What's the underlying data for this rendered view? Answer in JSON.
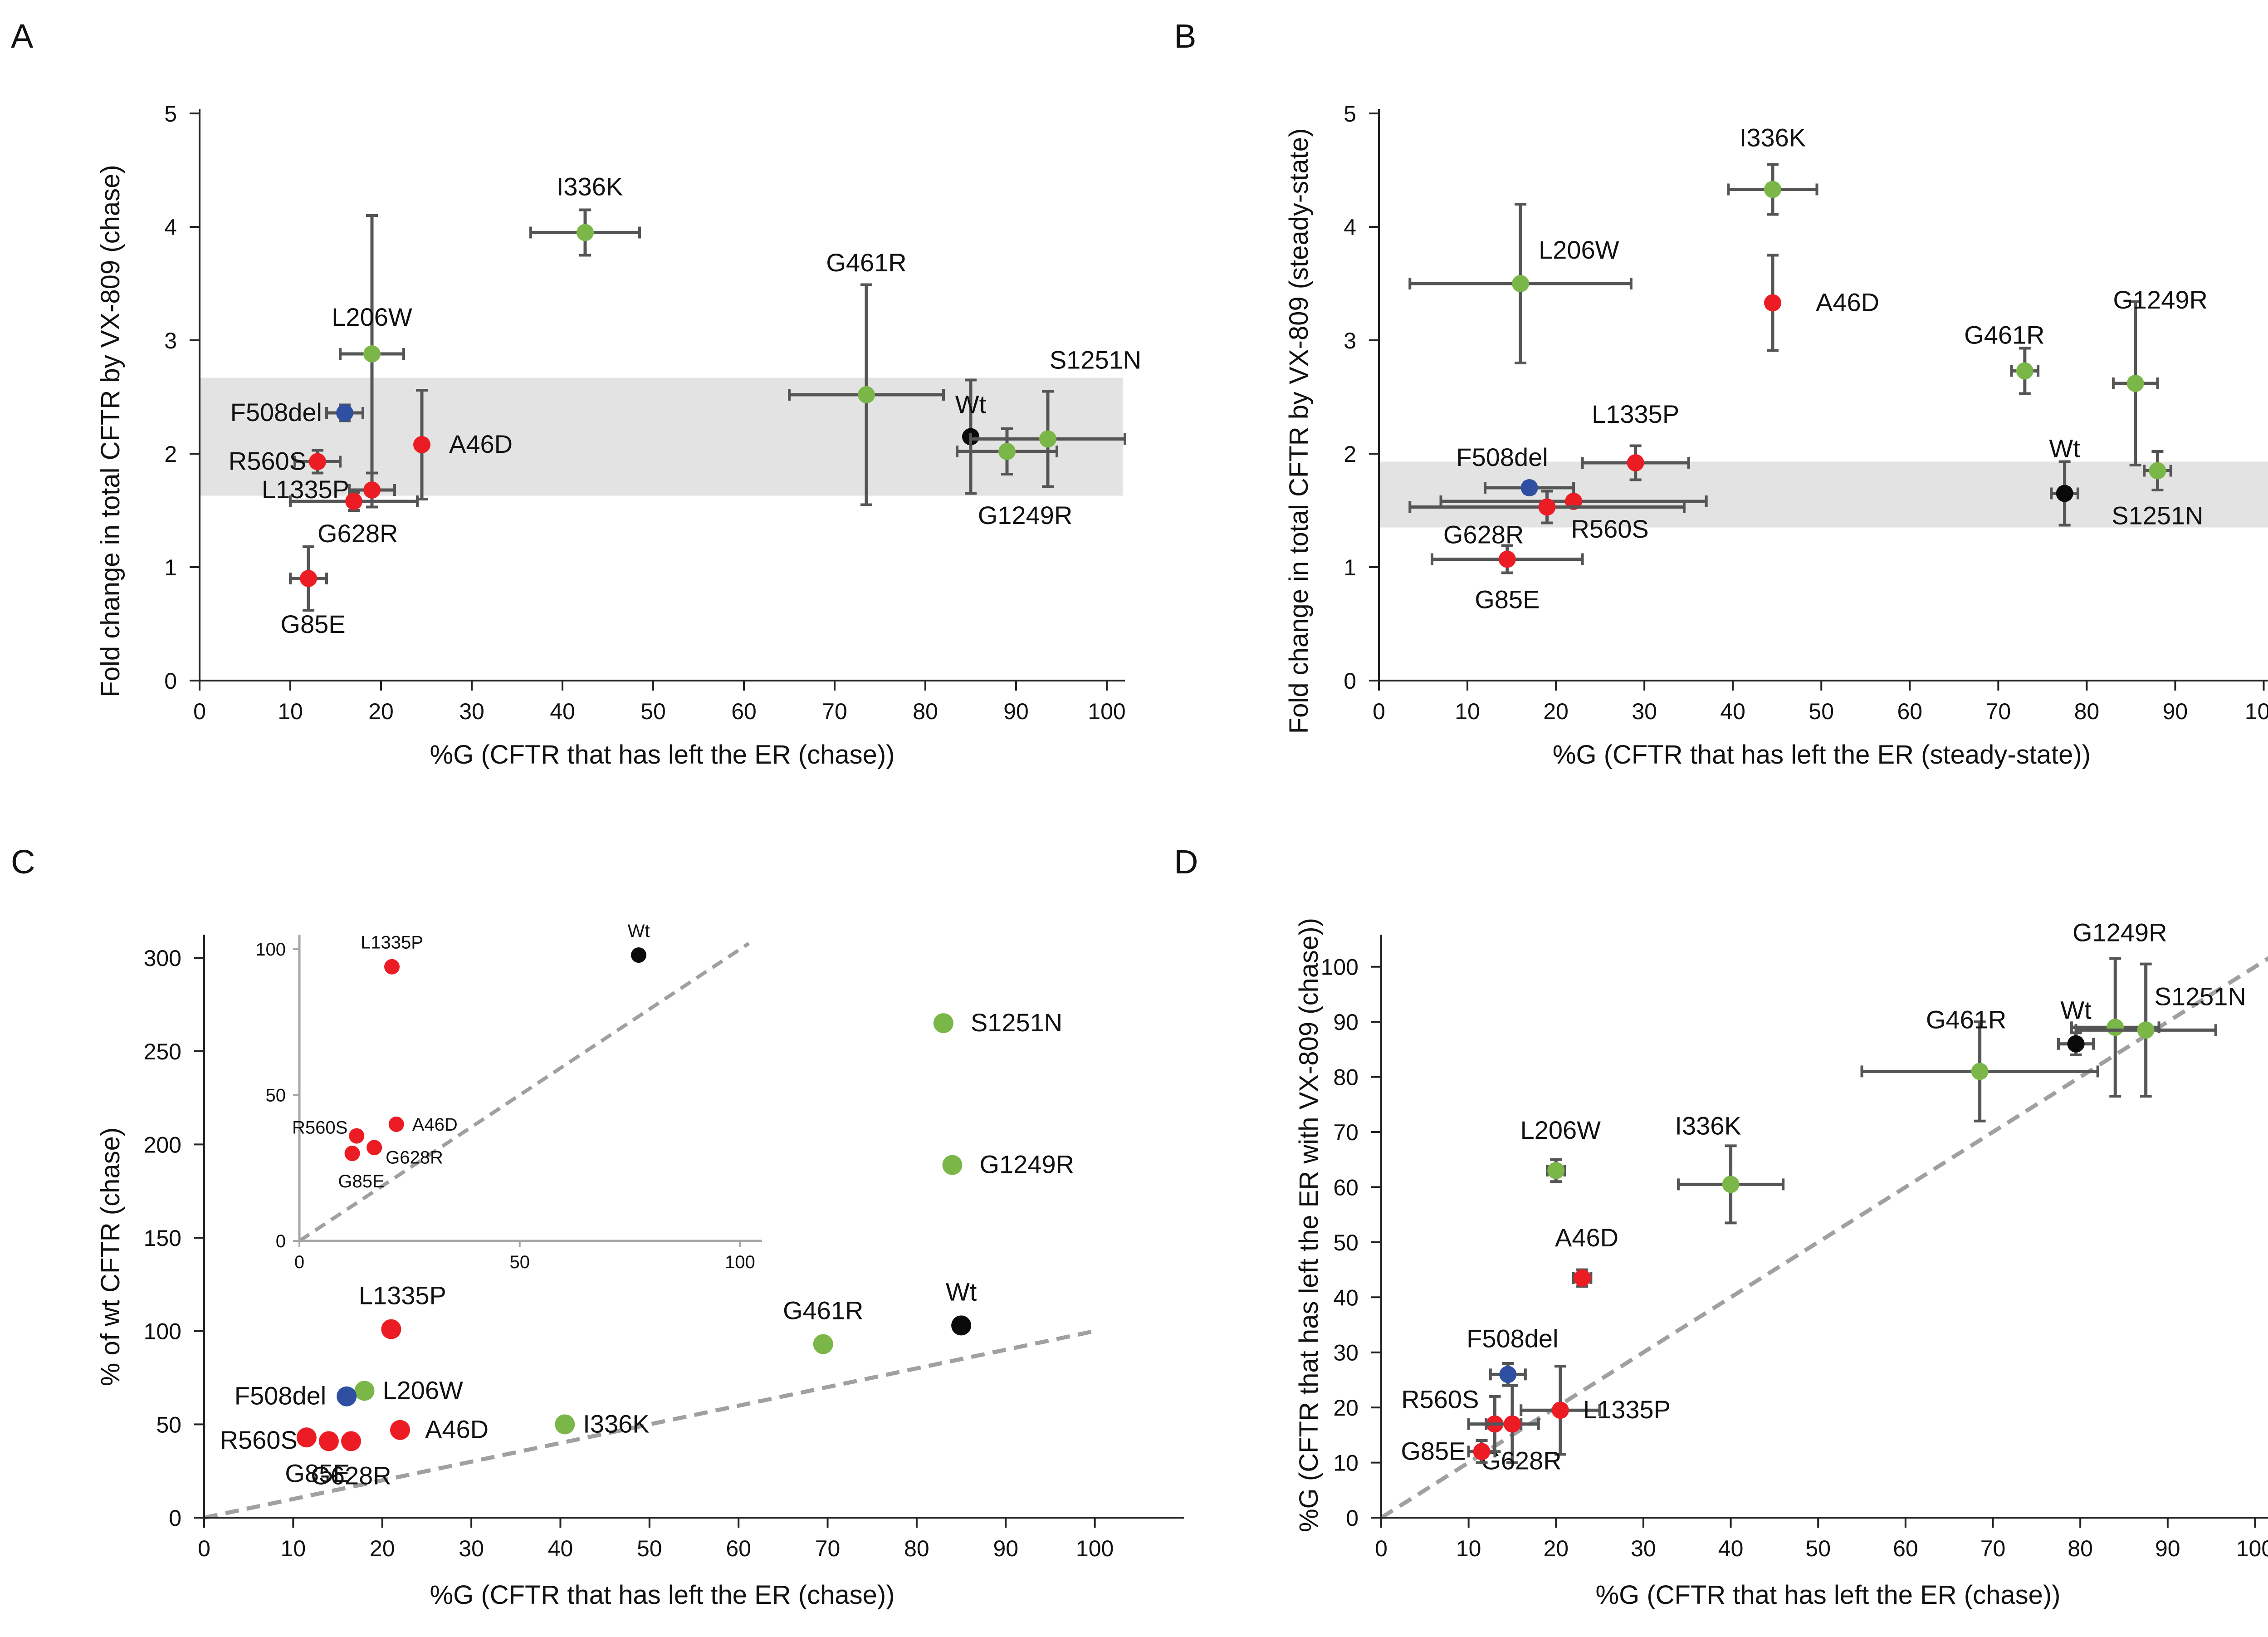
{
  "colors": {
    "red": "#ec1c24",
    "green": "#7ab648",
    "blue": "#2e4fa2",
    "black": "#0a0a0a",
    "axis": "#222222",
    "inset_axis": "#a6a6a6",
    "band": "#e3e3e3",
    "dashed": "#a0a0a0",
    "errbar": "#555555"
  },
  "chart_data": [
    {
      "panel": "A",
      "type": "scatter",
      "xlabel": "%G (CFTR that has left the ER (chase))",
      "ylabel": "Fold change in total CFTR by VX-809 (chase)",
      "xlim": [
        0,
        102
      ],
      "ylim": [
        0,
        5
      ],
      "xticks": [
        0,
        10,
        20,
        30,
        40,
        50,
        60,
        70,
        80,
        90,
        100
      ],
      "yticks": [
        0,
        1,
        2,
        3,
        4,
        5
      ],
      "band": [
        1.63,
        2.67
      ],
      "points": [
        {
          "label": "L206W",
          "x": 19,
          "y": 2.88,
          "color": "green",
          "xerr": 3.5,
          "yerr": 1.22
        },
        {
          "label": "I336K",
          "x": 42.5,
          "y": 3.95,
          "color": "green",
          "xerr": 6,
          "yerr": 0.2
        },
        {
          "label": "G461R",
          "x": 73.5,
          "y": 2.52,
          "color": "green",
          "xerr": 8.5,
          "yerr": 0.97
        },
        {
          "label": "Wt",
          "x": 85,
          "y": 2.15,
          "color": "black",
          "xerr": 0,
          "yerr": 0.5
        },
        {
          "label": "S1251N",
          "x": 93.5,
          "y": 2.13,
          "color": "green",
          "xerr": 8.5,
          "yerr": 0.42
        },
        {
          "label": "G1249R",
          "x": 89,
          "y": 2.02,
          "color": "green",
          "xerr": 5.5,
          "yerr": 0.2
        },
        {
          "label": "F508del",
          "x": 16,
          "y": 2.36,
          "color": "blue",
          "xerr": 2,
          "yerr": 0.07
        },
        {
          "label": "R560S",
          "x": 13,
          "y": 1.93,
          "color": "red",
          "xerr": 2.5,
          "yerr": 0.1
        },
        {
          "label": "A46D",
          "x": 24.5,
          "y": 2.08,
          "color": "red",
          "xerr": 0,
          "yerr": 0.48
        },
        {
          "label": "L1335P",
          "x": 19,
          "y": 1.68,
          "color": "red",
          "xerr": 2.5,
          "yerr": 0.15
        },
        {
          "label": "G628R",
          "x": 17,
          "y": 1.58,
          "color": "red",
          "xerr": 7,
          "yerr": 0.08
        },
        {
          "label": "G85E",
          "x": 12,
          "y": 0.9,
          "color": "red",
          "xerr": 2,
          "yerr": 0.28
        }
      ]
    },
    {
      "panel": "B",
      "type": "scatter",
      "xlabel": "%G (CFTR that has left the ER (steady-state))",
      "ylabel": "Fold change in total CFTR by VX-809 (steady-state)",
      "xlim": [
        0,
        101
      ],
      "ylim": [
        0,
        5
      ],
      "xticks": [
        0,
        10,
        20,
        30,
        40,
        50,
        60,
        70,
        80,
        90,
        100
      ],
      "yticks": [
        0,
        1,
        2,
        3,
        4,
        5
      ],
      "band": [
        1.35,
        1.93
      ],
      "points": [
        {
          "label": "I336K",
          "x": 44.5,
          "y": 4.33,
          "color": "green",
          "xerr": 5,
          "yerr": 0.22
        },
        {
          "label": "L206W",
          "x": 16,
          "y": 3.5,
          "color": "green",
          "xerr": 12.5,
          "yerr": 0.7
        },
        {
          "label": "A46D",
          "x": 44.5,
          "y": 3.33,
          "color": "red",
          "xerr": 0,
          "yerr": 0.42
        },
        {
          "label": "G461R",
          "x": 73,
          "y": 2.73,
          "color": "green",
          "xerr": 1.5,
          "yerr": 0.2
        },
        {
          "label": "G1249R",
          "x": 85.5,
          "y": 2.62,
          "color": "green",
          "xerr": 2.5,
          "yerr": 0.72
        },
        {
          "label": "S1251N",
          "x": 88,
          "y": 1.85,
          "color": "green",
          "xerr": 1.5,
          "yerr": 0.17
        },
        {
          "label": "Wt",
          "x": 77.5,
          "y": 1.65,
          "color": "black",
          "xerr": 1.5,
          "yerr": 0.28
        },
        {
          "label": "L1335P",
          "x": 29,
          "y": 1.92,
          "color": "red",
          "xerr": 6,
          "yerr": 0.15
        },
        {
          "label": "F508del",
          "x": 17,
          "y": 1.7,
          "color": "blue",
          "xerr": 5,
          "yerr": 0.05
        },
        {
          "label": "R560S",
          "x": 22,
          "y": 1.58,
          "color": "red",
          "xerr": 15,
          "yerr": 0
        },
        {
          "label": "G628R",
          "x": 19,
          "y": 1.53,
          "color": "red",
          "xerr": 15.5,
          "yerr": 0.14
        },
        {
          "label": "G85E",
          "x": 14.5,
          "y": 1.07,
          "color": "red",
          "xerr": 8.5,
          "yerr": 0.12
        }
      ]
    },
    {
      "panel": "C",
      "type": "scatter",
      "xlabel": "%G (CFTR that has left the ER (chase))",
      "ylabel": "% of wt CFTR (chase)",
      "xlim": [
        0,
        110
      ],
      "ylim": [
        0,
        310
      ],
      "xticks": [
        0,
        10,
        20,
        30,
        40,
        50,
        60,
        70,
        80,
        90,
        100
      ],
      "yticks": [
        0,
        50,
        100,
        150,
        200,
        250,
        300
      ],
      "identity_line": true,
      "points": [
        {
          "label": "S1251N",
          "x": 83,
          "y": 265,
          "color": "green"
        },
        {
          "label": "G1249R",
          "x": 84,
          "y": 189,
          "color": "green"
        },
        {
          "label": "Wt",
          "x": 85,
          "y": 103,
          "color": "black"
        },
        {
          "label": "G461R",
          "x": 69.5,
          "y": 93,
          "color": "green"
        },
        {
          "label": "L1335P",
          "x": 21,
          "y": 101,
          "color": "red"
        },
        {
          "label": "L206W",
          "x": 18,
          "y": 68,
          "color": "green"
        },
        {
          "label": "F508del",
          "x": 16,
          "y": 65,
          "color": "blue"
        },
        {
          "label": "A46D",
          "x": 22,
          "y": 47,
          "color": "red"
        },
        {
          "label": "I336K",
          "x": 40.5,
          "y": 50,
          "color": "green"
        },
        {
          "label": "R560S",
          "x": 11.5,
          "y": 43,
          "color": "red"
        },
        {
          "label": "G85E",
          "x": 14,
          "y": 41,
          "color": "red"
        },
        {
          "label": "G628R",
          "x": 16.5,
          "y": 41,
          "color": "red"
        }
      ],
      "inset": {
        "xlim": [
          0,
          105
        ],
        "ylim": [
          0,
          105
        ],
        "xticks": [
          0,
          50,
          100
        ],
        "yticks": [
          0,
          50,
          100
        ],
        "identity_line": true,
        "points": [
          {
            "label": "L1335P",
            "x": 21,
            "y": 94,
            "color": "red"
          },
          {
            "label": "Wt",
            "x": 77,
            "y": 98,
            "color": "black"
          },
          {
            "label": "R560S",
            "x": 13,
            "y": 36,
            "color": "red"
          },
          {
            "label": "A46D",
            "x": 22,
            "y": 40,
            "color": "red"
          },
          {
            "label": "G628R",
            "x": 17,
            "y": 32,
            "color": "red"
          },
          {
            "label": "G85E",
            "x": 12,
            "y": 30,
            "color": "red"
          }
        ]
      }
    },
    {
      "panel": "D",
      "type": "scatter",
      "xlabel": "%G (CFTR that has left the ER (chase))",
      "ylabel": "%G (CFTR that has left the ER with VX-809 (chase))",
      "xlim": [
        0,
        102
      ],
      "ylim": [
        0,
        105
      ],
      "xticks": [
        0,
        10,
        20,
        30,
        40,
        50,
        60,
        70,
        80,
        90,
        100
      ],
      "yticks": [
        0,
        10,
        20,
        30,
        40,
        50,
        60,
        70,
        80,
        90,
        100
      ],
      "identity_line": true,
      "points": [
        {
          "label": "G1249R",
          "x": 84,
          "y": 89,
          "color": "green",
          "xerr": 5,
          "yerr": 12.5
        },
        {
          "label": "S1251N",
          "x": 87.5,
          "y": 88.5,
          "color": "green",
          "xerr": 8,
          "yerr": 12
        },
        {
          "label": "Wt",
          "x": 79.5,
          "y": 86,
          "color": "black",
          "xerr": 2,
          "yerr": 2
        },
        {
          "label": "G461R",
          "x": 68.5,
          "y": 81,
          "color": "green",
          "xerr": 13.5,
          "yerr": 9
        },
        {
          "label": "L206W",
          "x": 20,
          "y": 63,
          "color": "green",
          "xerr": 1,
          "yerr": 2
        },
        {
          "label": "I336K",
          "x": 40,
          "y": 60.5,
          "color": "green",
          "xerr": 6,
          "yerr": 7
        },
        {
          "label": "A46D",
          "x": 23,
          "y": 43.5,
          "color": "red",
          "xerr": 1,
          "yerr": 1.5
        },
        {
          "label": "F508del",
          "x": 14.5,
          "y": 26,
          "color": "blue",
          "xerr": 2,
          "yerr": 2
        },
        {
          "label": "L1335P",
          "x": 20.5,
          "y": 19.5,
          "color": "red",
          "xerr": 4.5,
          "yerr": 8
        },
        {
          "label": "R560S",
          "x": 13,
          "y": 17,
          "color": "red",
          "xerr": 3,
          "yerr": 5
        },
        {
          "label": "G628R",
          "x": 15,
          "y": 17,
          "color": "red",
          "xerr": 3,
          "yerr": 7
        },
        {
          "label": "G85E",
          "x": 11.5,
          "y": 12,
          "color": "red",
          "xerr": 1.5,
          "yerr": 2
        }
      ]
    }
  ]
}
